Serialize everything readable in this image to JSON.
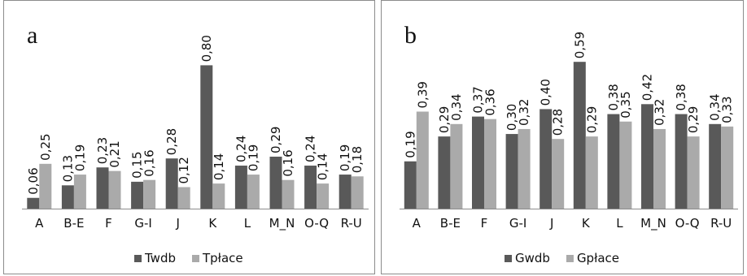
{
  "chart_data": [
    {
      "type": "bar",
      "panel_label": "a",
      "categories": [
        "A",
        "B-E",
        "F",
        "G-I",
        "J",
        "K",
        "L",
        "M_N",
        "O-Q",
        "R-U"
      ],
      "series": [
        {
          "name": "Twdb",
          "color": "#595959",
          "values": [
            0.06,
            0.13,
            0.23,
            0.15,
            0.28,
            0.8,
            0.24,
            0.29,
            0.24,
            0.19
          ],
          "labels": [
            "0,06",
            "0,13",
            "0,23",
            "0,15",
            "0,28",
            "0,80",
            "0,24",
            "0,29",
            "0,24",
            "0,19"
          ]
        },
        {
          "name": "Tpłace",
          "color": "#aaaaaa",
          "values": [
            0.25,
            0.19,
            0.21,
            0.16,
            0.12,
            0.14,
            0.19,
            0.16,
            0.14,
            0.18
          ],
          "labels": [
            "0,25",
            "0,19",
            "0,21",
            "0,16",
            "0,12",
            "0,14",
            "0,19",
            "0,16",
            "0,14",
            "0,18"
          ]
        }
      ],
      "ylim": [
        0,
        0.82
      ],
      "legend": "bottom",
      "grid": false
    },
    {
      "type": "bar",
      "panel_label": "b",
      "categories": [
        "A",
        "B-E",
        "F",
        "G-I",
        "J",
        "K",
        "L",
        "M_N",
        "O-Q",
        "R-U"
      ],
      "series": [
        {
          "name": "Gwdb",
          "color": "#595959",
          "values": [
            0.19,
            0.29,
            0.37,
            0.3,
            0.4,
            0.59,
            0.38,
            0.42,
            0.38,
            0.34
          ],
          "labels": [
            "0,19",
            "0,29",
            "0,37",
            "0,30",
            "0,40",
            "0,59",
            "0,38",
            "0,42",
            "0,38",
            "0,34"
          ]
        },
        {
          "name": "Gpłace",
          "color": "#aaaaaa",
          "values": [
            0.39,
            0.34,
            0.36,
            0.32,
            0.28,
            0.29,
            0.35,
            0.32,
            0.29,
            0.33
          ],
          "labels": [
            "0,39",
            "0,34",
            "0,36",
            "0,32",
            "0,28",
            "0,29",
            "0,35",
            "0,32",
            "0,29",
            "0,33"
          ]
        }
      ],
      "ylim": [
        0,
        0.62
      ],
      "legend": "bottom",
      "grid": false
    }
  ]
}
